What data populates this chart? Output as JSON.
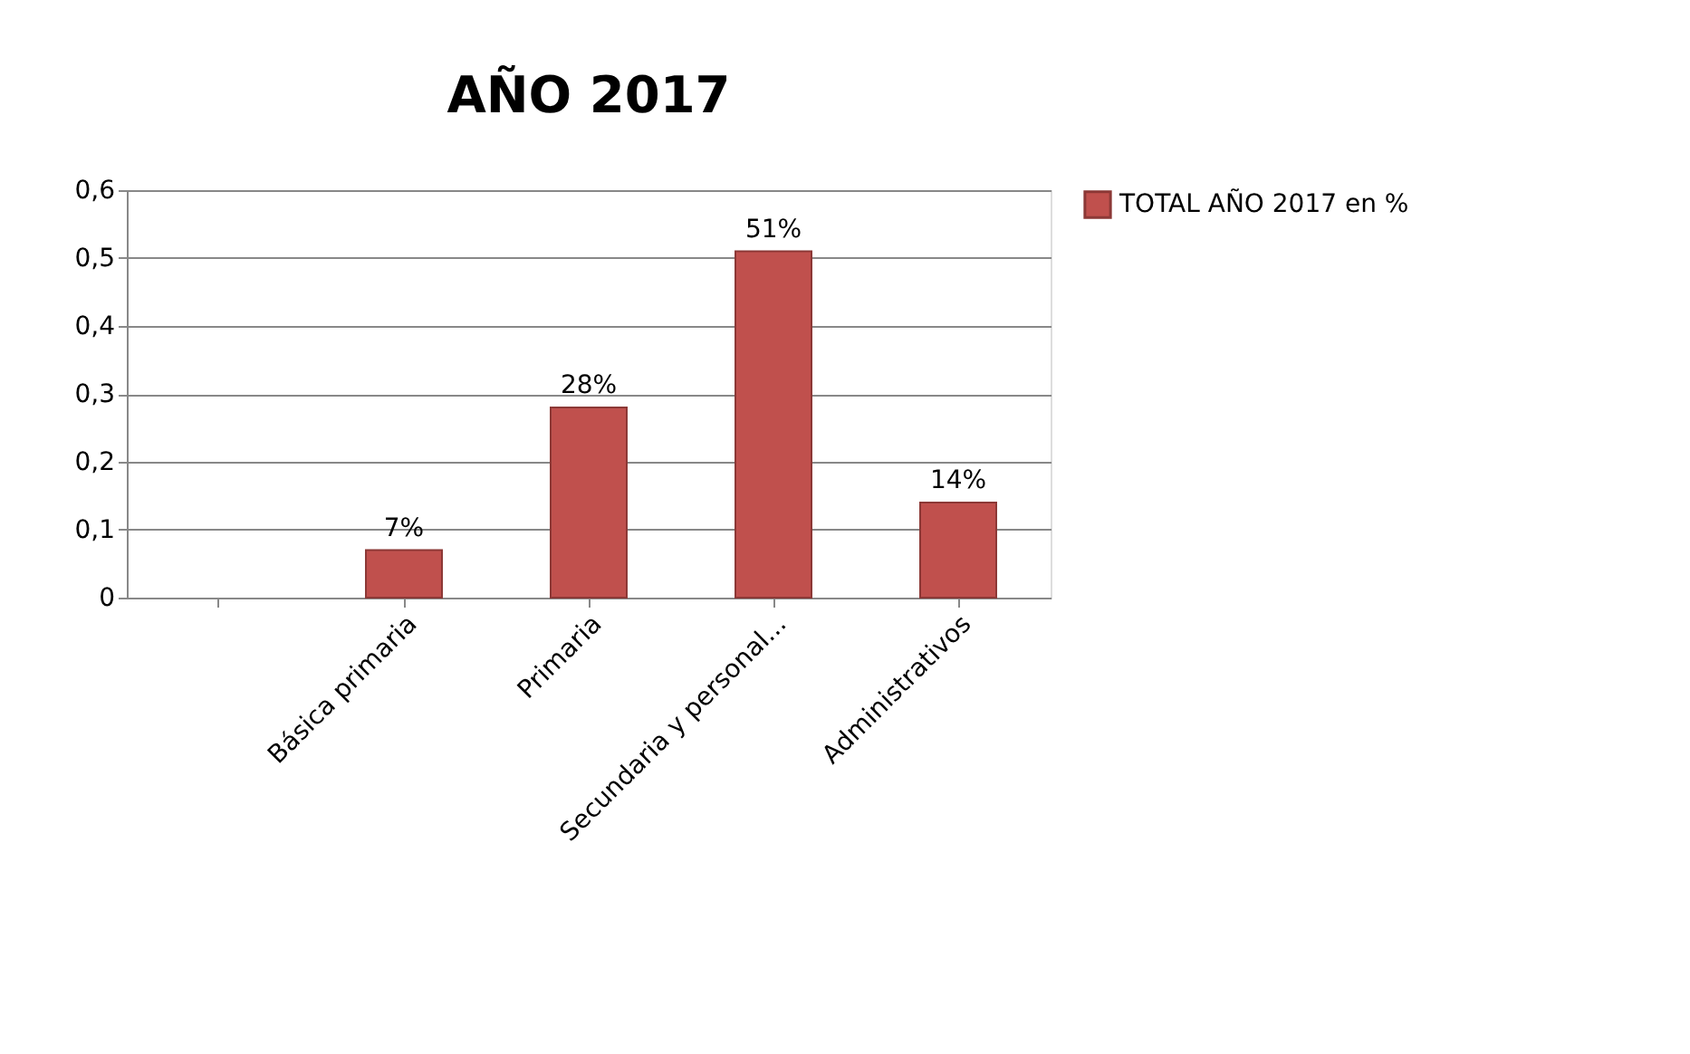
{
  "chart_data": {
    "type": "bar",
    "title": "AÑO 2017",
    "categories": [
      null,
      "Básica primaria",
      "Primaria",
      "Secundaria y personal...",
      "Administrativos"
    ],
    "series": [
      {
        "name": "TOTAL AÑO 2017 en %",
        "color": "#c0504d",
        "values": [
          null,
          0.07,
          0.28,
          0.51,
          0.14
        ],
        "value_labels": [
          null,
          "7%",
          "28%",
          "51%",
          "14%"
        ]
      }
    ],
    "ylim": [
      0,
      0.6
    ],
    "yticks": [
      0,
      {
        "value": 0.1,
        "label": "0,1"
      },
      {
        "value": 0.2,
        "label": "0,2"
      },
      {
        "value": 0.3,
        "label": "0,3"
      },
      {
        "value": 0.4,
        "label": "0,4"
      },
      {
        "value": 0.5,
        "label": "0,5"
      },
      {
        "value": 0.6,
        "label": "0,6"
      }
    ],
    "grid": "y",
    "legend": "right"
  }
}
